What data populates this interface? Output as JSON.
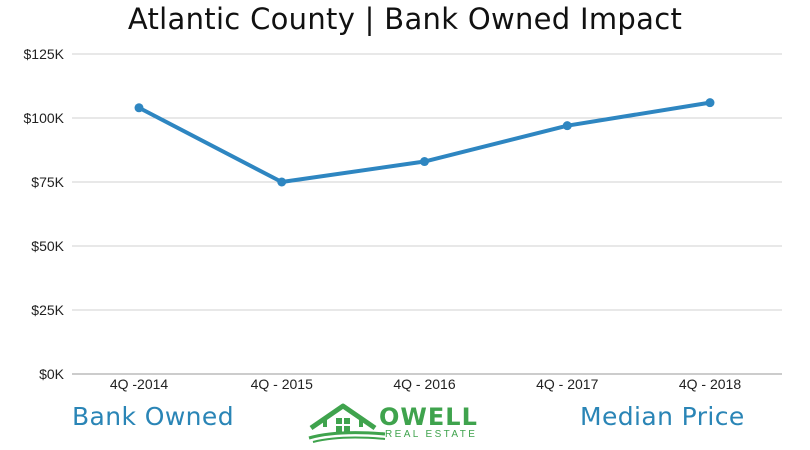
{
  "chart_data": {
    "type": "line",
    "title": "Atlantic County | Bank Owned Impact",
    "categories": [
      "4Q -2014",
      "4Q - 2015",
      "4Q - 2016",
      "4Q - 2017",
      "4Q - 2018"
    ],
    "values": [
      104000,
      75000,
      83000,
      97000,
      106000
    ],
    "y_ticks": [
      "$0K",
      "$25K",
      "$50K",
      "$75K",
      "$100K",
      "$125K"
    ],
    "ylim": [
      0,
      125000
    ],
    "grid": true,
    "legend": "none",
    "line_color": "#2e86c1",
    "grid_color": "#d0d0d0"
  },
  "footer": {
    "left_label": "Bank Owned",
    "right_label": "Median Price",
    "accent_color": "#2a85b6"
  },
  "logo": {
    "word": "OWELL",
    "subtitle": "REAL ESTATE",
    "icon": "house-icon",
    "color": "#3fa34d"
  }
}
